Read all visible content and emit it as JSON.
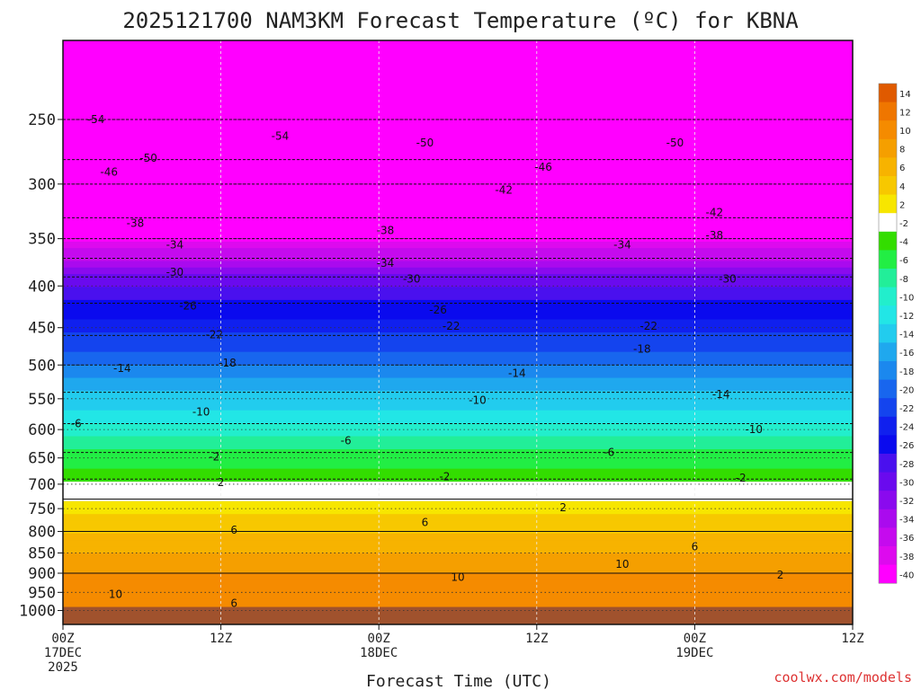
{
  "chart_data": {
    "type": "heatmap",
    "title": "2025121700 NAM3KM Forecast Temperature (ºC) for KBNA",
    "xlabel": "Forecast Time (UTC)",
    "ylabel": "",
    "credit": "coolwx.com/models",
    "x_ticks": [
      {
        "hour": 0,
        "label": "00Z",
        "sub1": "17DEC",
        "sub2": "2025"
      },
      {
        "hour": 12,
        "label": "12Z",
        "sub1": "",
        "sub2": ""
      },
      {
        "hour": 24,
        "label": "00Z",
        "sub1": "18DEC",
        "sub2": ""
      },
      {
        "hour": 36,
        "label": "12Z",
        "sub1": "",
        "sub2": ""
      },
      {
        "hour": 48,
        "label": "00Z",
        "sub1": "19DEC",
        "sub2": ""
      },
      {
        "hour": 60,
        "label": "12Z",
        "sub1": "",
        "sub2": ""
      }
    ],
    "xlim": [
      0,
      60
    ],
    "y_ticks": [
      250,
      300,
      350,
      400,
      450,
      500,
      550,
      600,
      650,
      700,
      750,
      800,
      850,
      900,
      950,
      1000
    ],
    "ylim": [
      1040,
      200
    ],
    "y_scale": "log",
    "y_inverted": true,
    "grid": true,
    "surface_pressure": 990,
    "surface_color": "#a0522d",
    "colorbar": {
      "placement": "right",
      "levels": [
        "14",
        "12",
        "10",
        "8",
        "6",
        "4",
        "2",
        "-2",
        "-4",
        "-6",
        "-8",
        "-10",
        "-12",
        "-14",
        "-16",
        "-18",
        "-20",
        "-22",
        "-24",
        "-26",
        "-28",
        "-30",
        "-32",
        "-34",
        "-36",
        "-38",
        "-40"
      ],
      "colors": [
        "#e05a00",
        "#ef7600",
        "#f58b00",
        "#f59f00",
        "#f7b300",
        "#f7c800",
        "#f7e600",
        "#ffffff",
        "#33dd00",
        "#22ee44",
        "#22ee99",
        "#22eecc",
        "#22e6e6",
        "#22ccee",
        "#1fa8ee",
        "#1b88ee",
        "#1866ee",
        "#1444ee",
        "#1020ee",
        "#0a0aee",
        "#4a10ee",
        "#6a0aee",
        "#8a0aee",
        "#aa0aee",
        "#c50aee",
        "#dd0aee",
        "#ff00ff"
      ]
    },
    "temperature_profile": [
      {
        "pressure": 250,
        "temp": -54
      },
      {
        "pressure": 280,
        "temp": -50
      },
      {
        "pressure": 300,
        "temp": -46
      },
      {
        "pressure": 330,
        "temp": -42
      },
      {
        "pressure": 350,
        "temp": -38
      },
      {
        "pressure": 370,
        "temp": -34
      },
      {
        "pressure": 390,
        "temp": -30
      },
      {
        "pressure": 420,
        "temp": -26
      },
      {
        "pressure": 460,
        "temp": -22
      },
      {
        "pressure": 500,
        "temp": -18
      },
      {
        "pressure": 540,
        "temp": -14
      },
      {
        "pressure": 590,
        "temp": -10
      },
      {
        "pressure": 640,
        "temp": -6
      },
      {
        "pressure": 690,
        "temp": -2
      },
      {
        "pressure": 730,
        "temp": 2
      },
      {
        "pressure": 800,
        "temp": 6
      },
      {
        "pressure": 900,
        "temp": 10
      }
    ],
    "contour_labels": [
      {
        "text": "-54",
        "hour": 2.5,
        "pressure": 250
      },
      {
        "text": "-54",
        "hour": 16.5,
        "pressure": 262
      },
      {
        "text": "-50",
        "hour": 6.5,
        "pressure": 279
      },
      {
        "text": "-50",
        "hour": 27.5,
        "pressure": 267
      },
      {
        "text": "-50",
        "hour": 46.5,
        "pressure": 267
      },
      {
        "text": "-46",
        "hour": 3.5,
        "pressure": 290
      },
      {
        "text": "-46",
        "hour": 36.5,
        "pressure": 286
      },
      {
        "text": "-42",
        "hour": 33.5,
        "pressure": 305
      },
      {
        "text": "-42",
        "hour": 49.5,
        "pressure": 325
      },
      {
        "text": "-38",
        "hour": 5.5,
        "pressure": 335
      },
      {
        "text": "-38",
        "hour": 24.5,
        "pressure": 342
      },
      {
        "text": "-38",
        "hour": 49.5,
        "pressure": 347
      },
      {
        "text": "-34",
        "hour": 8.5,
        "pressure": 356
      },
      {
        "text": "-34",
        "hour": 24.5,
        "pressure": 375
      },
      {
        "text": "-34",
        "hour": 42.5,
        "pressure": 356
      },
      {
        "text": "-30",
        "hour": 8.5,
        "pressure": 385
      },
      {
        "text": "-30",
        "hour": 26.5,
        "pressure": 392
      },
      {
        "text": "-30",
        "hour": 50.5,
        "pressure": 392
      },
      {
        "text": "-26",
        "hour": 9.5,
        "pressure": 423
      },
      {
        "text": "-26",
        "hour": 28.5,
        "pressure": 428
      },
      {
        "text": "-22",
        "hour": 11.5,
        "pressure": 459
      },
      {
        "text": "-22",
        "hour": 29.5,
        "pressure": 448
      },
      {
        "text": "-22",
        "hour": 44.5,
        "pressure": 448
      },
      {
        "text": "-18",
        "hour": 12.5,
        "pressure": 497
      },
      {
        "text": "-18",
        "hour": 44.0,
        "pressure": 478
      },
      {
        "text": "-14",
        "hour": 4.5,
        "pressure": 505
      },
      {
        "text": "-14",
        "hour": 34.5,
        "pressure": 512
      },
      {
        "text": "-14",
        "hour": 50.0,
        "pressure": 543
      },
      {
        "text": "-10",
        "hour": 10.5,
        "pressure": 571
      },
      {
        "text": "-10",
        "hour": 31.5,
        "pressure": 552
      },
      {
        "text": "-10",
        "hour": 52.5,
        "pressure": 600
      },
      {
        "text": "-6",
        "hour": 1.0,
        "pressure": 590
      },
      {
        "text": "-6",
        "hour": 21.5,
        "pressure": 619
      },
      {
        "text": "-6",
        "hour": 41.5,
        "pressure": 640
      },
      {
        "text": "-2",
        "hour": 11.5,
        "pressure": 648
      },
      {
        "text": "-2",
        "hour": 29.0,
        "pressure": 685
      },
      {
        "text": "-2",
        "hour": 51.5,
        "pressure": 688
      },
      {
        "text": "2",
        "hour": 12.0,
        "pressure": 697
      },
      {
        "text": "2",
        "hour": 38.0,
        "pressure": 748
      },
      {
        "text": "2",
        "hour": 54.5,
        "pressure": 905
      },
      {
        "text": "6",
        "hour": 13.0,
        "pressure": 797
      },
      {
        "text": "6",
        "hour": 27.5,
        "pressure": 780
      },
      {
        "text": "6",
        "hour": 48.0,
        "pressure": 835
      },
      {
        "text": "6",
        "hour": 13.0,
        "pressure": 980
      },
      {
        "text": "10",
        "hour": 4.0,
        "pressure": 955
      },
      {
        "text": "10",
        "hour": 30.0,
        "pressure": 910
      },
      {
        "text": "10",
        "hour": 42.5,
        "pressure": 878
      }
    ]
  }
}
